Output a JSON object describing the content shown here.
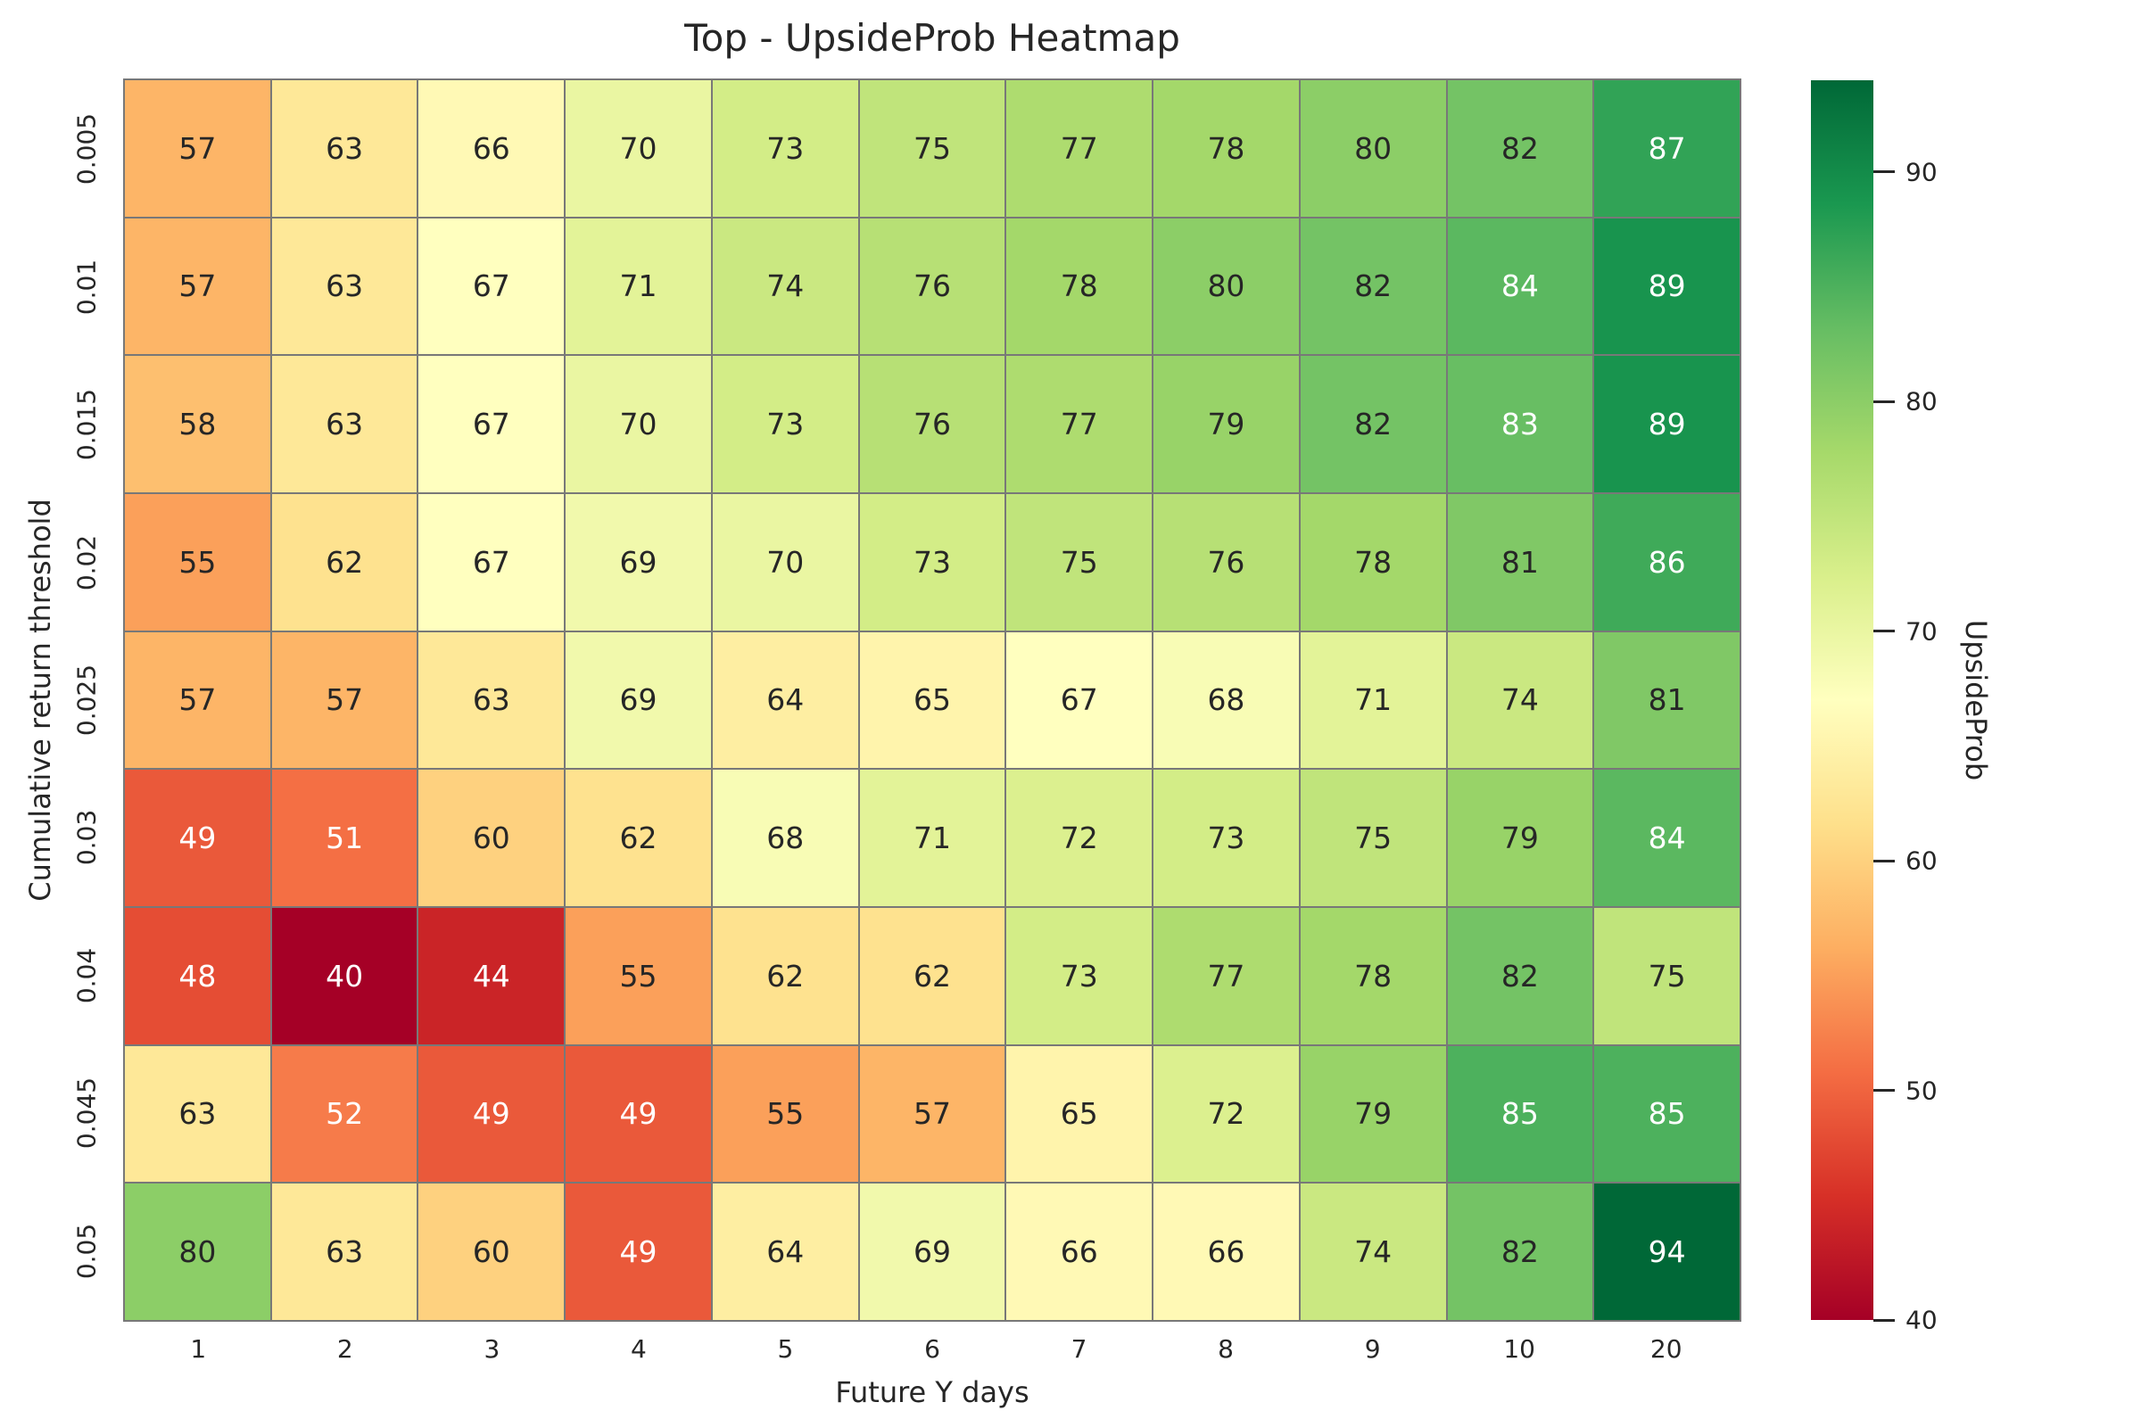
{
  "title": "Top - UpsideProb Heatmap",
  "chart_data": {
    "type": "heatmap",
    "title": "Top - UpsideProb Heatmap",
    "xlabel": "Future Y days",
    "ylabel": "Cumulative return threshold",
    "x_categories": [
      "1",
      "2",
      "3",
      "4",
      "5",
      "6",
      "7",
      "8",
      "9",
      "10",
      "20"
    ],
    "y_categories": [
      "0.005",
      "0.01",
      "0.015",
      "0.02",
      "0.025",
      "0.03",
      "0.04",
      "0.045",
      "0.05"
    ],
    "values": [
      [
        57,
        63,
        66,
        70,
        73,
        75,
        77,
        78,
        80,
        82,
        87
      ],
      [
        57,
        63,
        67,
        71,
        74,
        76,
        78,
        80,
        82,
        84,
        89
      ],
      [
        58,
        63,
        67,
        70,
        73,
        76,
        77,
        79,
        82,
        83,
        89
      ],
      [
        55,
        62,
        67,
        69,
        70,
        73,
        75,
        76,
        78,
        81,
        86
      ],
      [
        57,
        57,
        63,
        69,
        64,
        65,
        67,
        68,
        71,
        74,
        81
      ],
      [
        49,
        51,
        60,
        62,
        68,
        71,
        72,
        73,
        75,
        79,
        84
      ],
      [
        48,
        40,
        44,
        55,
        62,
        62,
        73,
        77,
        78,
        82,
        75
      ],
      [
        63,
        52,
        49,
        49,
        55,
        57,
        65,
        72,
        79,
        85,
        85
      ],
      [
        80,
        63,
        60,
        49,
        64,
        69,
        66,
        66,
        74,
        82,
        94
      ]
    ],
    "colorbar": {
      "label": "UpsideProb",
      "ticks": [
        40,
        50,
        60,
        70,
        80,
        90
      ],
      "vmin": 40,
      "vmax": 94
    },
    "colormap": {
      "name": "RdYlGn",
      "stops": [
        "#a50026",
        "#d73027",
        "#f46d43",
        "#fdae61",
        "#fee08b",
        "#ffffbf",
        "#d9ef8b",
        "#a6d96a",
        "#66bd63",
        "#1a9850",
        "#006837"
      ]
    },
    "style": {
      "grid_line_color": "#787878",
      "annot_dark_text": "#262626",
      "annot_light_text": "#ffffff",
      "legend_position": "right",
      "grid": "cell-borders"
    }
  }
}
